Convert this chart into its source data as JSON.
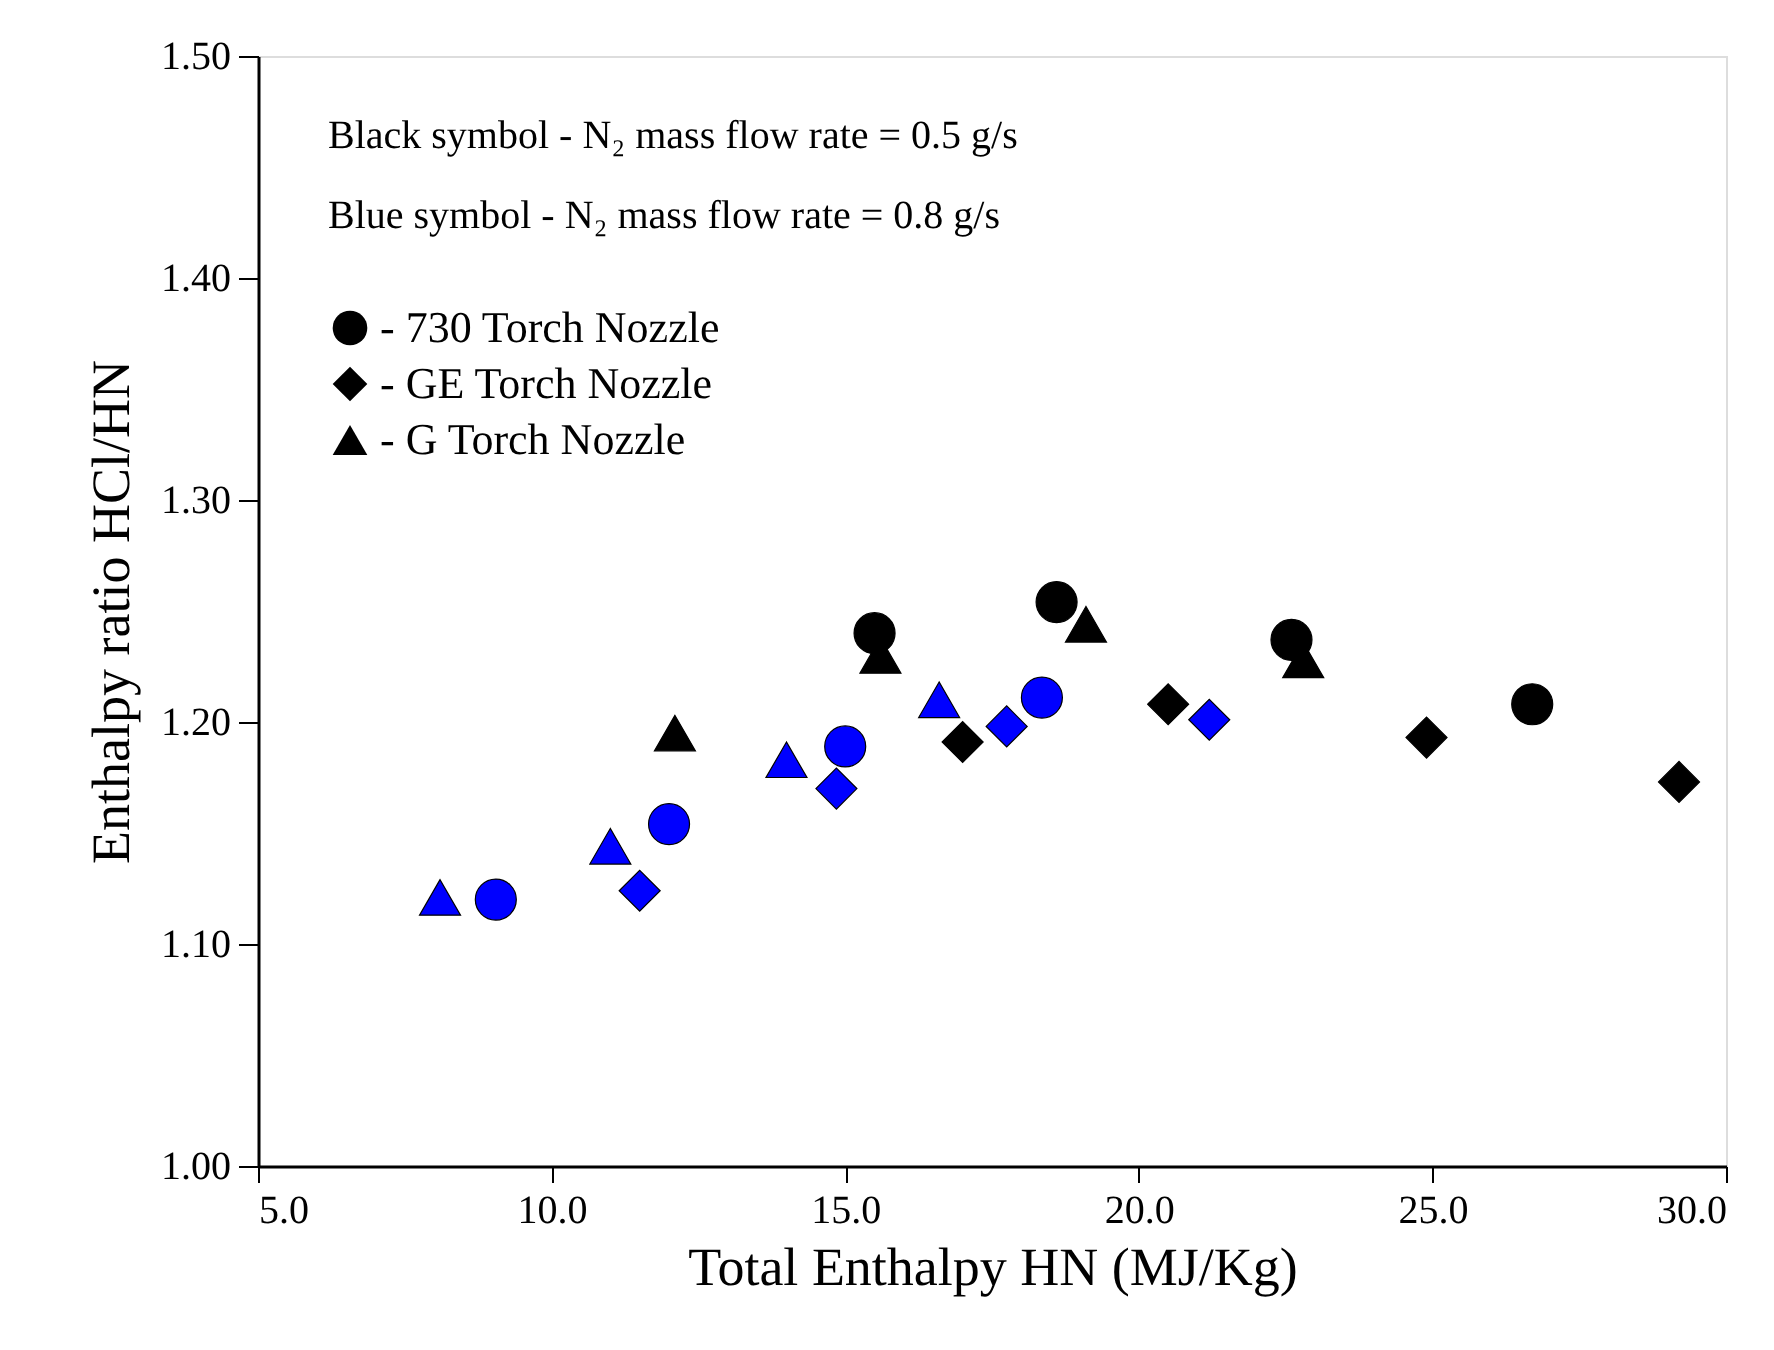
{
  "chart_data": {
    "type": "scatter",
    "xlabel": "Total Enthalpy HN (MJ/Kg)",
    "ylabel": "Enthalpy ratio HCl/HN",
    "annotations": [
      "Black symbol - N₂ mass flow rate = 0.5 g/s",
      "Blue symbol - N₂ mass flow rate = 0.8 g/s"
    ],
    "series": [
      {
        "name": "- 730 Torch Nozzle",
        "color": "#000000",
        "marker": "circle",
        "x": [
          15.5,
          18.6,
          22.6,
          26.7
        ],
        "values": [
          1.24,
          1.254,
          1.237,
          1.208
        ]
      },
      {
        "name": "- GE Torch Nozzle",
        "color": "#000000",
        "marker": "diamond",
        "x": [
          17.0,
          20.5,
          24.9,
          29.2
        ],
        "values": [
          1.191,
          1.208,
          1.193,
          1.173
        ]
      },
      {
        "name": "- G Torch Nozzle",
        "color": "#000000",
        "marker": "triangle",
        "x": [
          12.1,
          15.6,
          19.1,
          22.8
        ],
        "values": [
          1.195,
          1.23,
          1.244,
          1.228
        ]
      },
      {
        "color": "#0000ff",
        "marker": "circle",
        "x": [
          9.05,
          12.0,
          15.0,
          18.35
        ],
        "values": [
          1.12,
          1.154,
          1.189,
          1.211
        ]
      },
      {
        "color": "#0000ff",
        "marker": "diamond",
        "x": [
          11.5,
          14.85,
          17.75,
          21.2
        ],
        "values": [
          1.124,
          1.17,
          1.198,
          1.201
        ]
      },
      {
        "color": "#0000ff",
        "marker": "triangle",
        "x": [
          8.1,
          11.0,
          14.0,
          16.6
        ],
        "values": [
          1.121,
          1.144,
          1.183,
          1.21
        ]
      }
    ],
    "xlim": [
      5,
      30
    ],
    "xticks": [
      {
        "value": 5,
        "label": "5.0"
      },
      {
        "value": 10,
        "label": "10.0"
      },
      {
        "value": 15,
        "label": "15.0"
      },
      {
        "value": 20,
        "label": "20.0"
      },
      {
        "value": 25,
        "label": "25.0"
      },
      {
        "value": 30,
        "label": "30.0"
      }
    ],
    "ylim": [
      1.0,
      1.5
    ],
    "yticks": [
      {
        "value": 1.0,
        "label": "1.00"
      },
      {
        "value": 1.1,
        "label": "1.10"
      },
      {
        "value": 1.2,
        "label": "1.20"
      },
      {
        "value": 1.3,
        "label": "1.30"
      },
      {
        "value": 1.4,
        "label": "1.40"
      },
      {
        "value": 1.5,
        "label": "1.50"
      }
    ],
    "grid": false,
    "legend": "top left"
  }
}
